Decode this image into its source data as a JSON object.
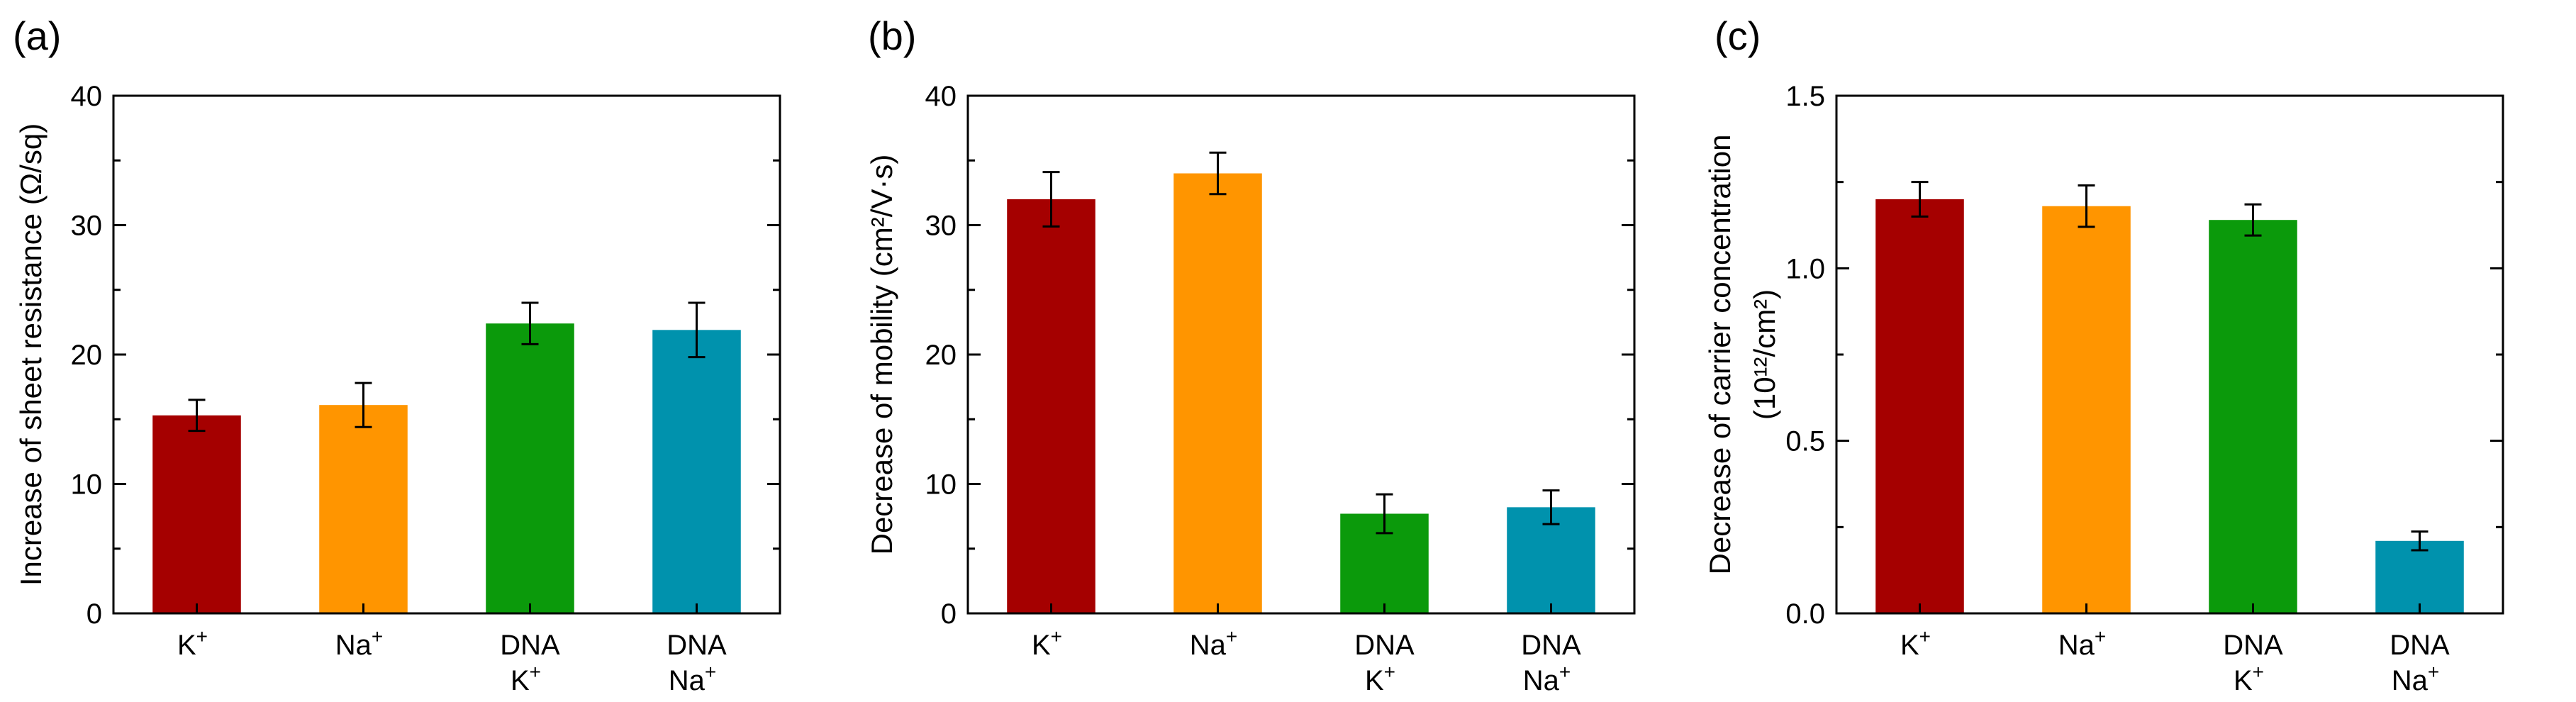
{
  "chart_data": [
    {
      "type": "bar",
      "panel_label": "(a)",
      "ylabel": "Increase of sheet resistance (Ω/sq)",
      "ylim": [
        0,
        40
      ],
      "yticks": [
        0,
        10,
        20,
        30,
        40
      ],
      "ytick_labels": [
        "0",
        "10",
        "20",
        "30",
        "40"
      ],
      "categories": [
        {
          "lines": [
            "K",
            "+"
          ],
          "two_line": false
        },
        {
          "lines": [
            "Na",
            "+"
          ],
          "two_line": false
        },
        {
          "lines": [
            "DNA",
            "K",
            "+"
          ],
          "two_line": true
        },
        {
          "lines": [
            "DNA",
            "Na",
            "+"
          ],
          "two_line": true
        }
      ],
      "values": [
        15.3,
        16.1,
        22.4,
        21.9
      ],
      "errors": [
        1.2,
        1.7,
        1.6,
        2.1
      ],
      "colors": [
        "#a50000",
        "#ff9500",
        "#0b9a0b",
        "#0092ad"
      ],
      "grid": false
    },
    {
      "type": "bar",
      "panel_label": "(b)",
      "ylabel": "Decrease of mobility (cm²/V·s)",
      "ylim": [
        0,
        40
      ],
      "yticks": [
        0,
        10,
        20,
        30,
        40
      ],
      "ytick_labels": [
        "0",
        "10",
        "20",
        "30",
        "40"
      ],
      "categories": [
        {
          "lines": [
            "K",
            "+"
          ],
          "two_line": false
        },
        {
          "lines": [
            "Na",
            "+"
          ],
          "two_line": false
        },
        {
          "lines": [
            "DNA",
            "K",
            "+"
          ],
          "two_line": true
        },
        {
          "lines": [
            "DNA",
            "Na",
            "+"
          ],
          "two_line": true
        }
      ],
      "values": [
        32.0,
        34.0,
        7.7,
        8.2
      ],
      "errors": [
        2.1,
        1.6,
        1.5,
        1.3
      ],
      "colors": [
        "#a50000",
        "#ff9500",
        "#0b9a0b",
        "#0092ad"
      ],
      "grid": false
    },
    {
      "type": "bar",
      "panel_label": "(c)",
      "ylabel": "Decrease of carrier concentration",
      "ylabel2": "(10¹²/cm²)",
      "ylim": [
        0,
        1.5
      ],
      "yticks": [
        0,
        0.5,
        1.0,
        1.5
      ],
      "ytick_labels": [
        "0.0",
        "0.5",
        "1.0",
        "1.5"
      ],
      "categories": [
        {
          "lines": [
            "K",
            "+"
          ],
          "two_line": false
        },
        {
          "lines": [
            "Na",
            "+"
          ],
          "two_line": false
        },
        {
          "lines": [
            "DNA",
            "K",
            "+"
          ],
          "two_line": true
        },
        {
          "lines": [
            "DNA",
            "Na",
            "+"
          ],
          "two_line": true
        }
      ],
      "values": [
        1.2,
        1.18,
        1.14,
        0.21
      ],
      "errors": [
        0.05,
        0.06,
        0.045,
        0.027
      ],
      "colors": [
        "#a50000",
        "#ff9500",
        "#0b9a0b",
        "#0092ad"
      ],
      "grid": false
    }
  ]
}
